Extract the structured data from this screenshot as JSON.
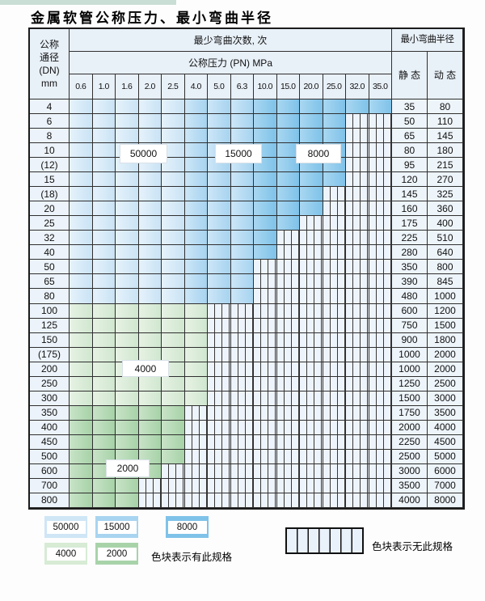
{
  "title": "金属软管公称压力、最小弯曲半径",
  "table": {
    "dn_header_lines": [
      "公称",
      "通径",
      "(DN)",
      "mm"
    ],
    "bend_header": "最少弯曲次数, 次",
    "pn_header": "公称压力 (PN) MPa",
    "radius_header": "最小弯曲半径",
    "static_header": "静 态",
    "dynamic_header": "动 态",
    "pressure_columns": [
      "0.6",
      "1.0",
      "1.6",
      "2.0",
      "2.5",
      "4.0",
      "5.0",
      "6.3",
      "10.0",
      "15.0",
      "20.0",
      "25.0",
      "32.0",
      "35.0"
    ],
    "rows": [
      {
        "dn": "4",
        "limit": 13,
        "palette": "b",
        "static": "35",
        "dynamic": "80"
      },
      {
        "dn": "6",
        "limit": 11,
        "palette": "b",
        "static": "50",
        "dynamic": "110"
      },
      {
        "dn": "8",
        "limit": 11,
        "palette": "b",
        "static": "65",
        "dynamic": "145"
      },
      {
        "dn": "10",
        "limit": 11,
        "palette": "b",
        "static": "80",
        "dynamic": "180"
      },
      {
        "dn": "(12)",
        "limit": 11,
        "palette": "b",
        "static": "95",
        "dynamic": "215"
      },
      {
        "dn": "15",
        "limit": 11,
        "palette": "b",
        "static": "120",
        "dynamic": "270"
      },
      {
        "dn": "(18)",
        "limit": 10,
        "palette": "b",
        "static": "145",
        "dynamic": "325"
      },
      {
        "dn": "20",
        "limit": 10,
        "palette": "b",
        "static": "160",
        "dynamic": "360"
      },
      {
        "dn": "25",
        "limit": 9,
        "palette": "b",
        "static": "175",
        "dynamic": "400"
      },
      {
        "dn": "32",
        "limit": 8,
        "palette": "b",
        "static": "225",
        "dynamic": "510"
      },
      {
        "dn": "40",
        "limit": 8,
        "palette": "b",
        "static": "280",
        "dynamic": "640"
      },
      {
        "dn": "50",
        "limit": 7,
        "palette": "b",
        "static": "350",
        "dynamic": "800"
      },
      {
        "dn": "65",
        "limit": 7,
        "palette": "b",
        "static": "390",
        "dynamic": "845"
      },
      {
        "dn": "80",
        "limit": 7,
        "palette": "b",
        "static": "480",
        "dynamic": "1000"
      },
      {
        "dn": "100",
        "limit": 5,
        "palette": "g1",
        "static": "600",
        "dynamic": "1200"
      },
      {
        "dn": "125",
        "limit": 5,
        "palette": "g1",
        "static": "750",
        "dynamic": "1500"
      },
      {
        "dn": "150",
        "limit": 5,
        "palette": "g1",
        "static": "900",
        "dynamic": "1800"
      },
      {
        "dn": "(175)",
        "limit": 5,
        "palette": "g1",
        "static": "1000",
        "dynamic": "2000"
      },
      {
        "dn": "200",
        "limit": 5,
        "palette": "g1",
        "static": "1000",
        "dynamic": "2000"
      },
      {
        "dn": "250",
        "limit": 5,
        "palette": "g1",
        "static": "1250",
        "dynamic": "2500"
      },
      {
        "dn": "300",
        "limit": 5,
        "palette": "g1",
        "static": "1500",
        "dynamic": "3000"
      },
      {
        "dn": "350",
        "limit": 4,
        "palette": "g2",
        "static": "1750",
        "dynamic": "3500"
      },
      {
        "dn": "400",
        "limit": 4,
        "palette": "g2",
        "static": "2000",
        "dynamic": "4000"
      },
      {
        "dn": "450",
        "limit": 4,
        "palette": "g2",
        "static": "2250",
        "dynamic": "4500"
      },
      {
        "dn": "500",
        "limit": 4,
        "palette": "g2",
        "static": "2500",
        "dynamic": "5000"
      },
      {
        "dn": "600",
        "limit": 3,
        "palette": "g2",
        "static": "3000",
        "dynamic": "6000"
      },
      {
        "dn": "700",
        "limit": 2,
        "palette": "g2",
        "static": "3500",
        "dynamic": "7000"
      },
      {
        "dn": "800",
        "limit": 2,
        "palette": "g2",
        "static": "4000",
        "dynamic": "8000"
      }
    ]
  },
  "overlays": {
    "b50000": "50000",
    "b15000": "15000",
    "b8000": "8000",
    "b4000": "4000",
    "b2000": "2000"
  },
  "legend": {
    "items": [
      {
        "label": "50000",
        "color": "#cfe6f6"
      },
      {
        "label": "15000",
        "color": "#a8d4f0"
      },
      {
        "label": "8000",
        "color": "#7fc2e9"
      },
      {
        "label": "4000",
        "color": "#d7ebd5"
      },
      {
        "label": "2000",
        "color": "#a8d3a9"
      }
    ],
    "has_spec_text": "色块表示有此规格",
    "no_spec_text": "色块表示无此规格"
  },
  "colors": {
    "blue_50000": "#c9e3f5",
    "blue_15000": "#a6d3f0",
    "blue_8000": "#7ec2e9",
    "green_4000": "#d0e7cf",
    "green_2000": "#a6d2a7",
    "no_spec_bg": "#eef4fb",
    "grid_line": "#2f2f2f",
    "header_bg": "#e8f0f8",
    "top_strip": "#c9ded4"
  }
}
